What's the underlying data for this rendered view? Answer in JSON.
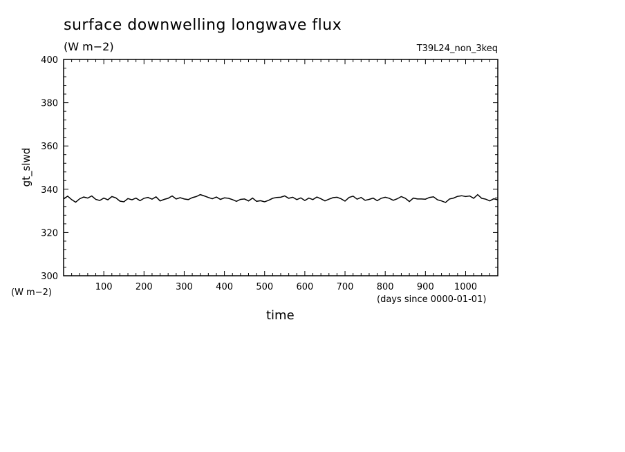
{
  "chart_data": {
    "type": "line",
    "title": "surface downwelling longwave flux",
    "units": "(W m−2)",
    "run_label": "T39L24_non_3keq",
    "ylabel": "gt_slwd",
    "yunits": "(W m−2)",
    "xlabel": "time",
    "xunits": "(days since 0000-01-01)",
    "xlim": [
      0,
      1080
    ],
    "ylim": [
      300,
      400
    ],
    "xticks": [
      100,
      200,
      300,
      400,
      500,
      600,
      700,
      800,
      900,
      1000
    ],
    "yticks": [
      300,
      320,
      340,
      360,
      380,
      400
    ],
    "grid": false,
    "series": [
      {
        "x": [
          0,
          10,
          20,
          30,
          40,
          50,
          60,
          70,
          80,
          90,
          100,
          110,
          120,
          130,
          140,
          150,
          160,
          170,
          180,
          190,
          200,
          210,
          220,
          230,
          240,
          250,
          260,
          270,
          280,
          290,
          300,
          310,
          320,
          330,
          340,
          350,
          360,
          370,
          380,
          390,
          400,
          410,
          420,
          430,
          440,
          450,
          460,
          470,
          480,
          490,
          500,
          510,
          520,
          530,
          540,
          550,
          560,
          570,
          580,
          590,
          600,
          610,
          620,
          630,
          640,
          650,
          660,
          670,
          680,
          690,
          700,
          710,
          720,
          730,
          740,
          750,
          760,
          770,
          780,
          790,
          800,
          810,
          820,
          830,
          840,
          850,
          860,
          870,
          880,
          890,
          900,
          910,
          920,
          930,
          940,
          950,
          960,
          970,
          980,
          990,
          1000,
          1010,
          1020,
          1030,
          1040,
          1050,
          1060,
          1070,
          1080
        ],
        "y": [
          335.5,
          336.8,
          335.2,
          334.0,
          335.6,
          336.4,
          335.9,
          336.9,
          335.3,
          334.8,
          335.9,
          335.1,
          336.6,
          336.0,
          334.5,
          334.2,
          335.7,
          335.1,
          335.9,
          334.7,
          335.8,
          336.2,
          335.4,
          336.5,
          334.6,
          335.3,
          335.8,
          336.9,
          335.5,
          336.1,
          335.5,
          335.2,
          336.1,
          336.6,
          337.5,
          336.9,
          336.2,
          335.6,
          336.4,
          335.3,
          336.0,
          335.8,
          335.2,
          334.4,
          335.3,
          335.5,
          334.6,
          335.9,
          334.4,
          334.7,
          334.2,
          334.9,
          335.8,
          336.2,
          336.3,
          336.9,
          335.8,
          336.3,
          335.2,
          336.0,
          334.8,
          335.9,
          335.2,
          336.4,
          335.6,
          334.6,
          335.4,
          336.1,
          336.3,
          335.6,
          334.5,
          336.2,
          336.8,
          335.4,
          336.2,
          334.9,
          335.3,
          335.9,
          334.7,
          335.8,
          336.3,
          335.8,
          334.9,
          335.6,
          336.6,
          335.8,
          334.3,
          335.9,
          335.5,
          335.5,
          335.4,
          336.2,
          336.5,
          335.1,
          334.6,
          333.9,
          335.5,
          335.9,
          336.7,
          337.0,
          336.6,
          336.9,
          335.8,
          337.5,
          335.8,
          335.4,
          334.6,
          335.6,
          335.1
        ]
      }
    ]
  }
}
